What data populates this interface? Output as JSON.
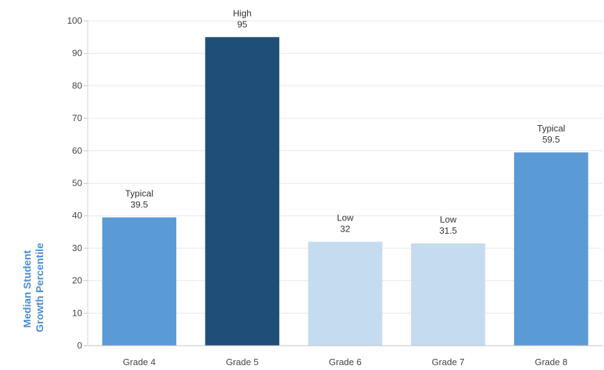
{
  "chart_data": {
    "type": "bar",
    "categories": [
      "Grade 4",
      "Grade 5",
      "Grade 6",
      "Grade 7",
      "Grade 8"
    ],
    "values": [
      39.5,
      95,
      32,
      31.5,
      59.5
    ],
    "value_labels": [
      "39.5",
      "95",
      "32",
      "31.5",
      "59.5"
    ],
    "bar_labels": [
      "Typical",
      "High",
      "Low",
      "Low",
      "Typical"
    ],
    "bar_colors": [
      "#5b9bd5",
      "#1f4e79",
      "#c5dbf0",
      "#c5dbf0",
      "#5b9bd5"
    ],
    "ylabel_lines": [
      "Median Student",
      "Growth Percentile"
    ],
    "xlabel": "",
    "title": "",
    "ylim": [
      0,
      100
    ],
    "yticks": [
      0,
      10,
      20,
      30,
      40,
      50,
      60,
      70,
      80,
      90,
      100
    ],
    "grid": true,
    "legend": "none"
  }
}
